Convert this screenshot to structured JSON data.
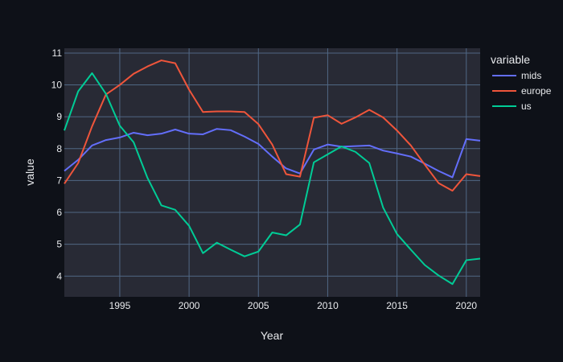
{
  "chart_data": {
    "type": "line",
    "xlabel": "Year",
    "ylabel": "value",
    "legend_title": "variable",
    "legend_position": "right",
    "grid": true,
    "xlim": [
      1991,
      2021
    ],
    "ylim": [
      3.35,
      11.15
    ],
    "x_ticks": [
      1995,
      2000,
      2005,
      2010,
      2015,
      2020
    ],
    "y_ticks": [
      4,
      5,
      6,
      7,
      8,
      9,
      10,
      11
    ],
    "x": [
      1991,
      1992,
      1993,
      1994,
      1995,
      1996,
      1997,
      1998,
      1999,
      2000,
      2001,
      2002,
      2003,
      2004,
      2005,
      2006,
      2007,
      2008,
      2009,
      2010,
      2011,
      2012,
      2013,
      2014,
      2015,
      2016,
      2017,
      2018,
      2019,
      2020,
      2021
    ],
    "series": [
      {
        "name": "mids",
        "color": "#636efa",
        "values": [
          7.3,
          7.65,
          8.1,
          8.27,
          8.35,
          8.5,
          8.42,
          8.47,
          8.6,
          8.47,
          8.45,
          8.62,
          8.58,
          8.38,
          8.15,
          7.75,
          7.38,
          7.22,
          7.97,
          8.13,
          8.06,
          8.08,
          8.1,
          7.94,
          7.85,
          7.75,
          7.53,
          7.3,
          7.1,
          8.3,
          8.25
        ]
      },
      {
        "name": "europe",
        "color": "#ef553b",
        "values": [
          6.9,
          7.55,
          8.7,
          9.7,
          10.0,
          10.35,
          10.58,
          10.77,
          10.68,
          9.85,
          9.15,
          9.17,
          9.17,
          9.15,
          8.77,
          8.13,
          7.2,
          7.12,
          8.97,
          9.05,
          8.78,
          8.98,
          9.22,
          8.98,
          8.57,
          8.1,
          7.5,
          6.92,
          6.68,
          7.2,
          7.14
        ]
      },
      {
        "name": "us",
        "color": "#00cc96",
        "values": [
          8.57,
          9.8,
          10.37,
          9.72,
          8.72,
          8.2,
          7.08,
          6.22,
          6.08,
          5.58,
          4.72,
          5.05,
          4.83,
          4.62,
          4.77,
          5.37,
          5.28,
          5.62,
          7.57,
          7.82,
          8.07,
          7.9,
          7.55,
          6.15,
          5.32,
          4.83,
          4.35,
          4.02,
          3.75,
          4.5,
          4.55
        ]
      }
    ]
  }
}
